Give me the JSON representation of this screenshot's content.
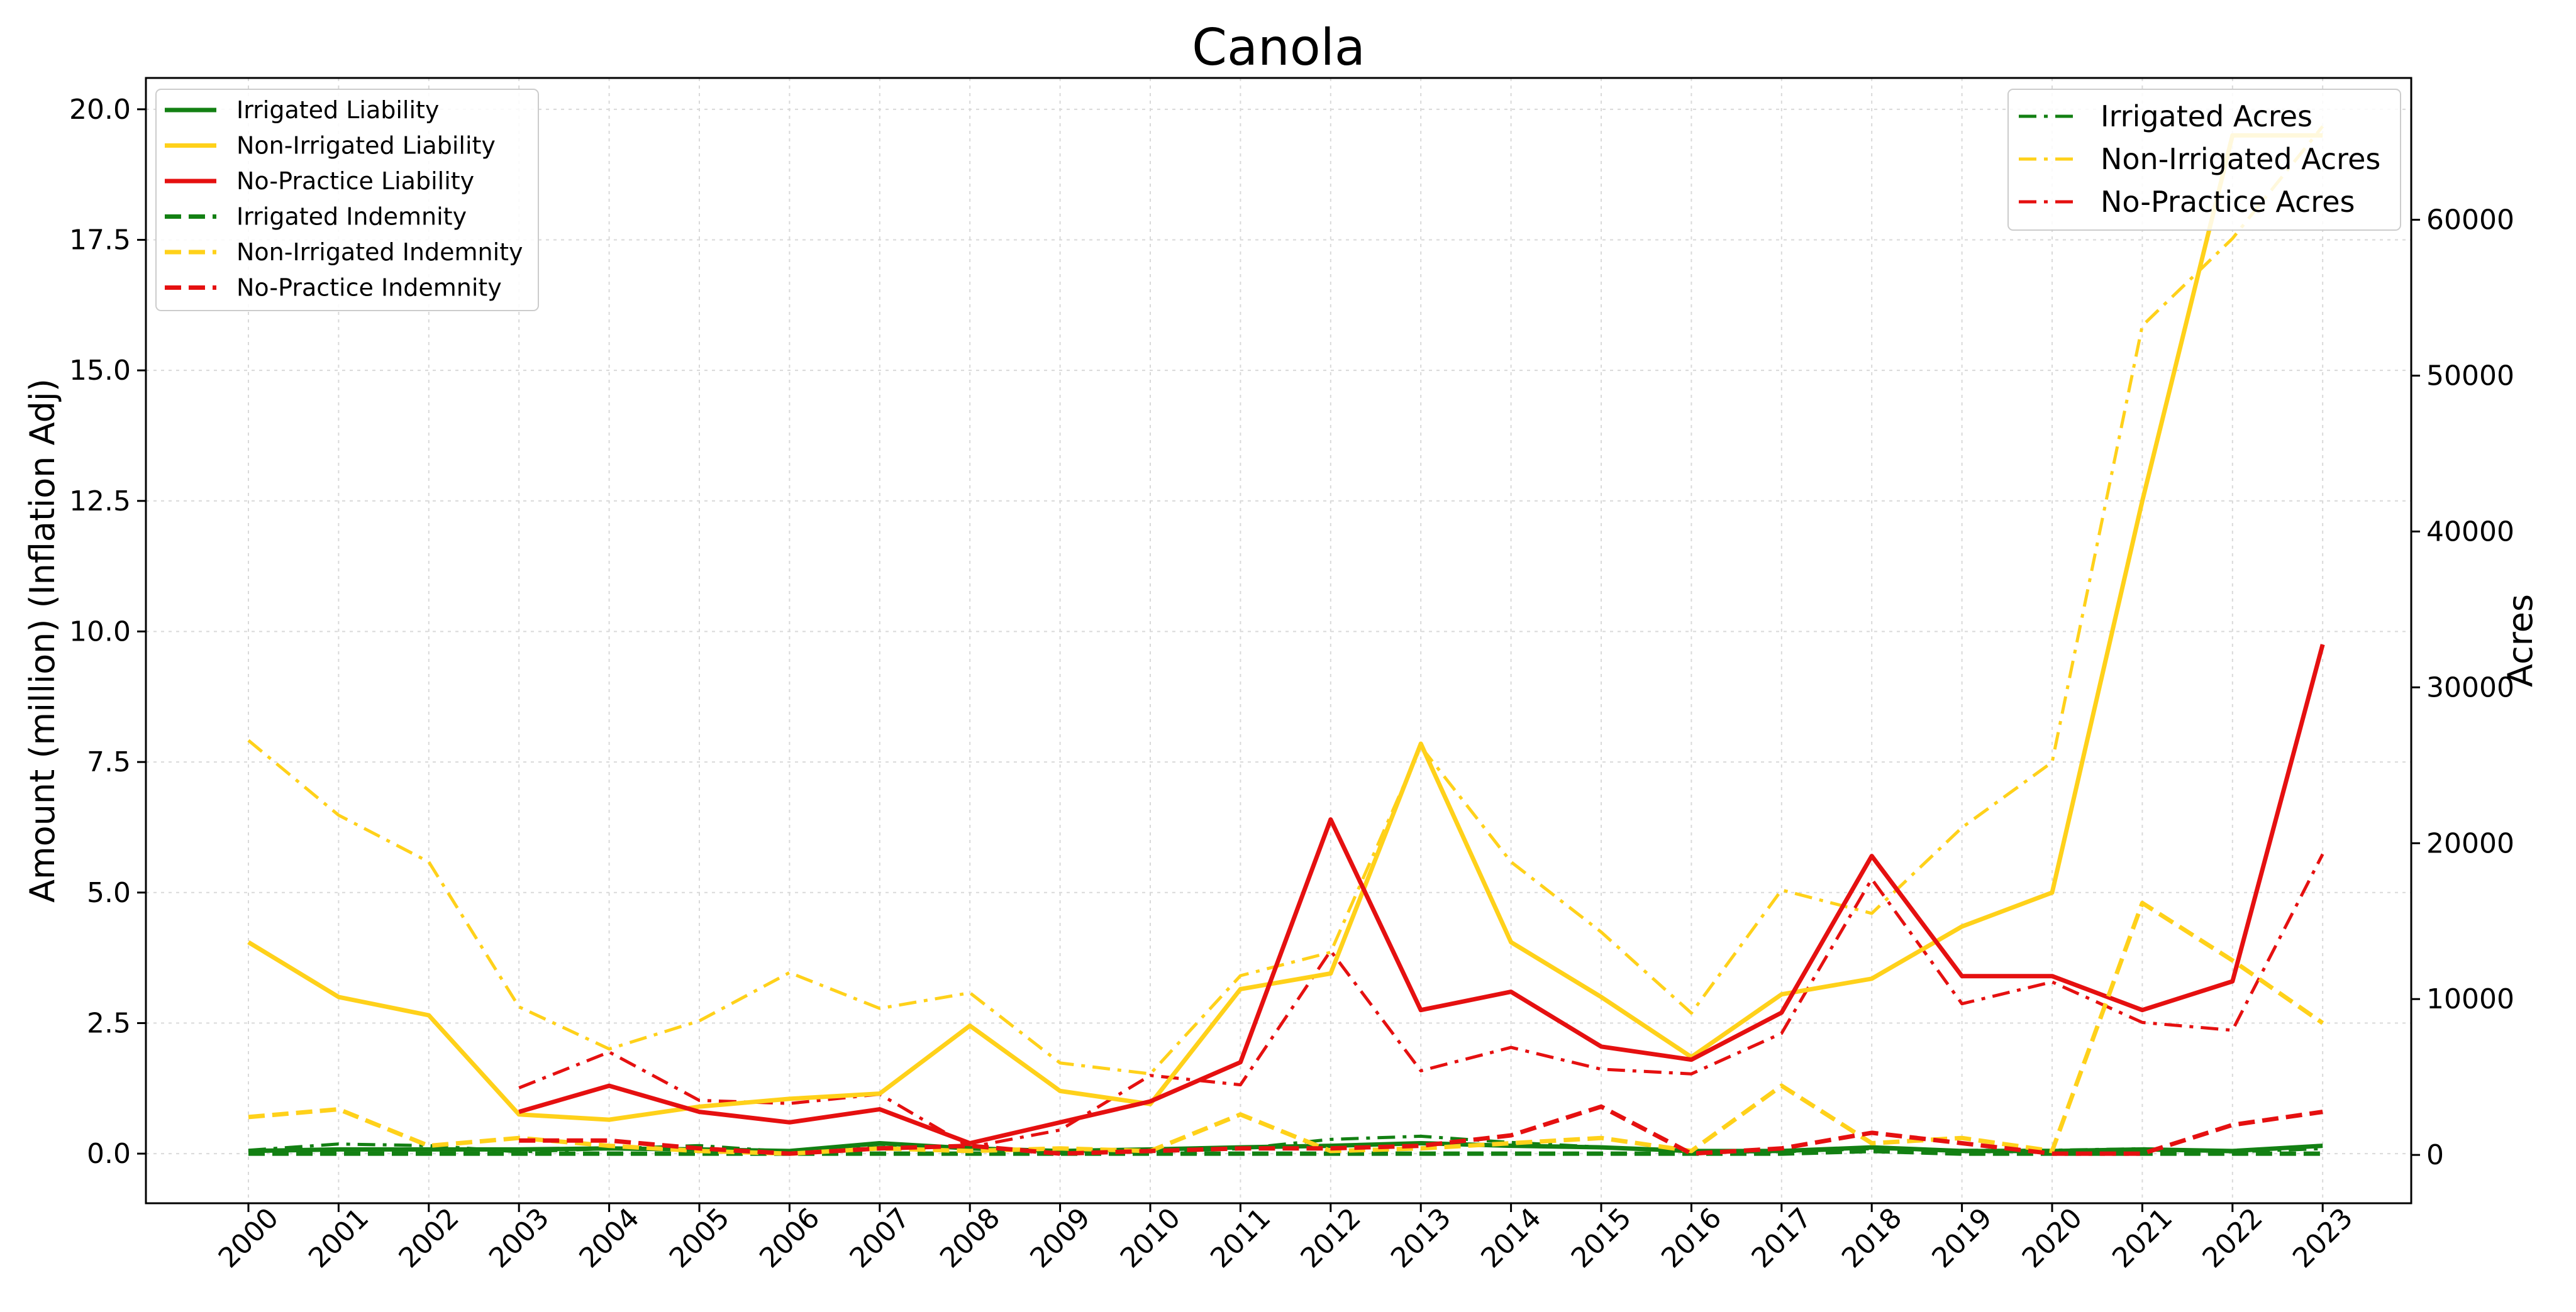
{
  "chart_data": {
    "type": "line",
    "title": "Canola",
    "ylabel": "Amount (million) (Inflation Adj)",
    "y2label": "Acres",
    "x": [
      "2000",
      "2001",
      "2002",
      "2003",
      "2004",
      "2005",
      "2006",
      "2007",
      "2008",
      "2009",
      "2010",
      "2011",
      "2012",
      "2013",
      "2014",
      "2015",
      "2016",
      "2017",
      "2018",
      "2019",
      "2020",
      "2021",
      "2022",
      "2023"
    ],
    "ylim": [
      -0.95,
      20.6
    ],
    "y_ticks": [
      "0.0",
      "2.5",
      "5.0",
      "7.5",
      "10.0",
      "12.5",
      "15.0",
      "17.5",
      "20.0"
    ],
    "y2lim": [
      -3100,
      69100
    ],
    "y2_ticks": [
      "0",
      "10000",
      "20000",
      "30000",
      "40000",
      "50000",
      "60000"
    ],
    "grid": true,
    "legend_left_position": "upper-left",
    "legend_right_position": "upper-right",
    "colors": {
      "irrigated": "#138013",
      "non_irrigated": "#ffd11a",
      "no_practice": "#e51010"
    },
    "series": [
      {
        "name": "Irrigated Liability",
        "axis": "left",
        "style": "solid",
        "color": "#138013",
        "values": [
          0.05,
          0.08,
          0.08,
          0.08,
          0.1,
          0.08,
          0.05,
          0.2,
          0.1,
          0.05,
          0.08,
          0.12,
          0.15,
          0.2,
          0.15,
          0.12,
          0.05,
          0.05,
          0.12,
          0.05,
          0.05,
          0.08,
          0.05,
          0.15
        ]
      },
      {
        "name": "Non-Irrigated Liability",
        "axis": "left",
        "style": "solid",
        "color": "#ffd11a",
        "values": [
          4.05,
          3.0,
          2.65,
          0.75,
          0.65,
          0.9,
          1.05,
          1.15,
          2.45,
          1.2,
          0.95,
          3.15,
          3.45,
          7.85,
          4.05,
          3.0,
          1.85,
          3.05,
          3.35,
          4.35,
          5.0,
          12.5,
          19.5,
          19.5
        ]
      },
      {
        "name": "No-Practice Liability",
        "axis": "left",
        "style": "solid",
        "color": "#e51010",
        "values": [
          null,
          null,
          null,
          0.8,
          1.3,
          0.8,
          0.6,
          0.85,
          0.2,
          0.6,
          1.0,
          1.75,
          6.4,
          2.75,
          3.1,
          2.05,
          1.8,
          2.7,
          5.7,
          3.4,
          3.4,
          2.75,
          3.3,
          9.75
        ]
      },
      {
        "name": "Irrigated Indemnity",
        "axis": "left",
        "style": "dashed",
        "color": "#138013",
        "values": [
          0.0,
          0.0,
          0.0,
          0.0,
          0.0,
          0.0,
          0.0,
          0.0,
          0.0,
          0.0,
          0.0,
          0.0,
          0.0,
          0.0,
          0.0,
          0.0,
          0.0,
          0.0,
          0.05,
          0.0,
          0.0,
          0.0,
          0.0,
          0.0
        ]
      },
      {
        "name": "Non-Irrigated Indemnity",
        "axis": "left",
        "style": "dashed",
        "color": "#ffd11a",
        "values": [
          0.7,
          0.85,
          0.15,
          0.3,
          0.15,
          0.05,
          0.0,
          0.1,
          0.05,
          0.1,
          0.05,
          0.75,
          0.05,
          0.1,
          0.2,
          0.3,
          0.05,
          1.3,
          0.2,
          0.3,
          0.05,
          4.8,
          3.7,
          2.5
        ]
      },
      {
        "name": "No-Practice Indemnity",
        "axis": "left",
        "style": "dashed",
        "color": "#e51010",
        "values": [
          null,
          null,
          null,
          0.25,
          0.25,
          0.1,
          0.0,
          0.1,
          0.15,
          0.0,
          0.05,
          0.1,
          0.1,
          0.15,
          0.35,
          0.9,
          0.0,
          0.1,
          0.4,
          0.2,
          0.0,
          0.0,
          0.55,
          0.8
        ]
      },
      {
        "name": "Irrigated Acres",
        "axis": "right",
        "style": "dashdot",
        "color": "#138013",
        "values": [
          300,
          700,
          600,
          200,
          400,
          600,
          200,
          500,
          500,
          100,
          200,
          400,
          1000,
          1200,
          800,
          500,
          200,
          200,
          400,
          300,
          300,
          400,
          200,
          400
        ]
      },
      {
        "name": "Non-Irrigated Acres",
        "axis": "right",
        "style": "dashdot",
        "color": "#ffd11a",
        "values": [
          26600,
          21800,
          18800,
          9500,
          6800,
          8600,
          11700,
          9400,
          10400,
          5900,
          5200,
          11500,
          13000,
          26200,
          18800,
          14300,
          9100,
          17000,
          15500,
          21000,
          25200,
          53200,
          58800,
          66000
        ]
      },
      {
        "name": "No-Practice Acres",
        "axis": "right",
        "style": "dashdot",
        "color": "#e51010",
        "values": [
          null,
          null,
          null,
          4300,
          6600,
          3500,
          3300,
          3900,
          500,
          1600,
          5100,
          4500,
          13100,
          5400,
          6900,
          5500,
          5200,
          7800,
          17700,
          9700,
          11100,
          8500,
          8000,
          19300
        ]
      }
    ]
  }
}
